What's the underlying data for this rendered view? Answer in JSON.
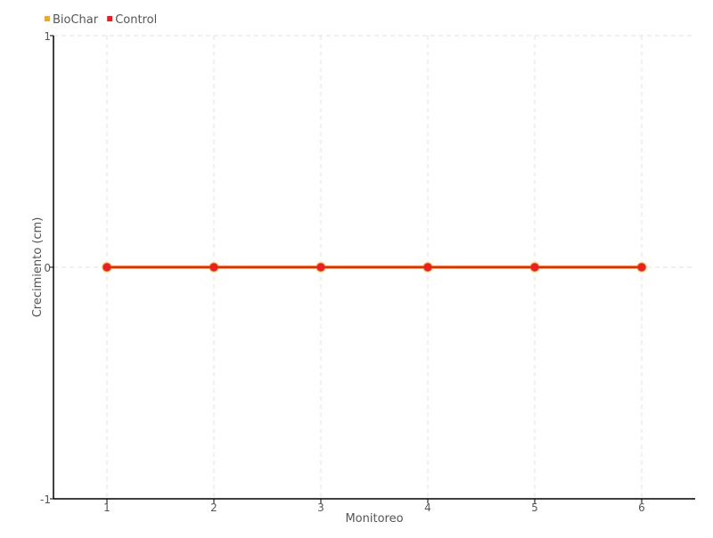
{
  "chart_data": {
    "type": "line",
    "title": "",
    "xlabel": "Monitoreo",
    "ylabel": "Crecimiento (cm)",
    "x": [
      1,
      2,
      3,
      4,
      5,
      6
    ],
    "xticks": [
      "1",
      "2",
      "3",
      "4",
      "5",
      "6"
    ],
    "xlim": [
      0.5,
      6.5
    ],
    "yticks": [
      "-1",
      "0",
      "1"
    ],
    "ylim": [
      -1,
      1
    ],
    "grid": true,
    "legend_position": "top-left",
    "series": [
      {
        "name": "BioChar",
        "color": "#f5a623",
        "values": [
          0,
          0,
          0,
          0,
          0,
          0
        ]
      },
      {
        "name": "Control",
        "color": "#ee1c25",
        "values": [
          0,
          0,
          0,
          0,
          0,
          0
        ]
      }
    ]
  }
}
